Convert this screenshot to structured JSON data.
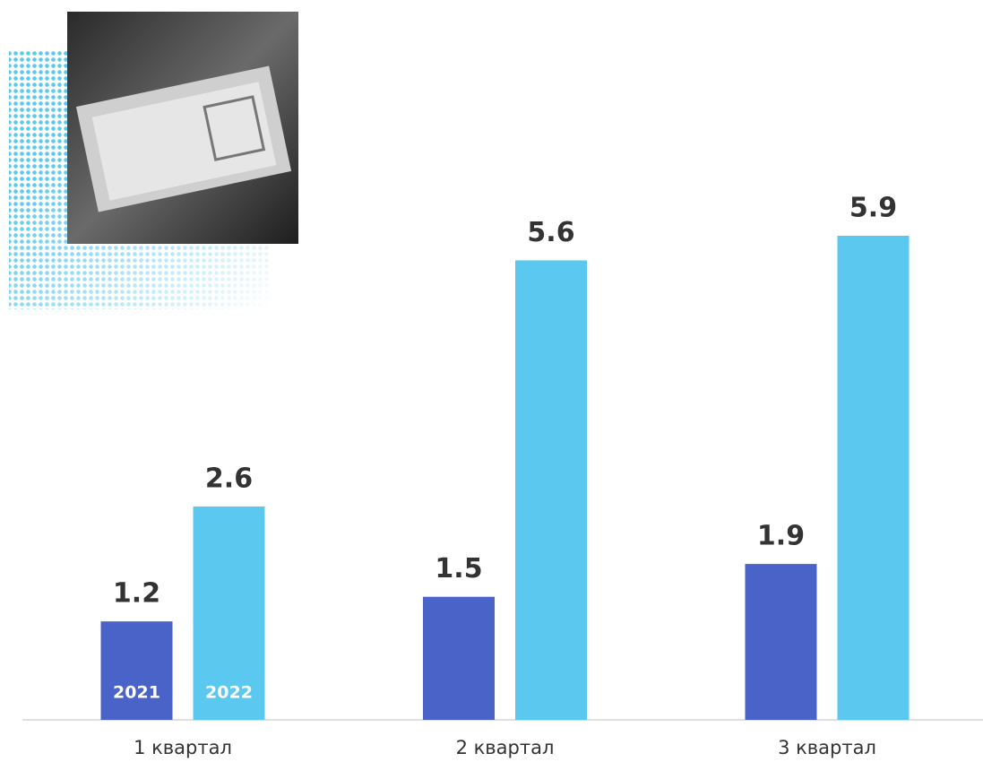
{
  "chart_data": {
    "type": "bar",
    "categories": [
      "1 квартал",
      "2 квартал",
      "3 квартал"
    ],
    "series": [
      {
        "name": "2021",
        "color": "#4a63c8",
        "values": [
          1.2,
          1.5,
          1.9
        ]
      },
      {
        "name": "2022",
        "color": "#5bc8f0",
        "values": [
          2.6,
          5.6,
          5.9
        ]
      }
    ]
  }
}
